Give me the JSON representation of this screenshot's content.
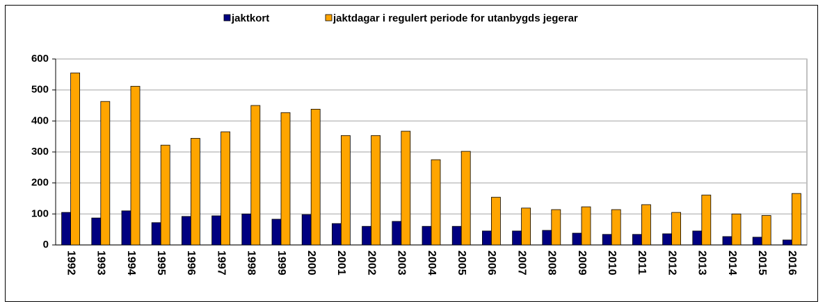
{
  "chart_data": {
    "type": "bar",
    "categories": [
      "1992",
      "1993",
      "1994",
      "1995",
      "1996",
      "1997",
      "1998",
      "1999",
      "2000",
      "2001",
      "2002",
      "2003",
      "2004",
      "2005",
      "2006",
      "2007",
      "2008",
      "2009",
      "2010",
      "2011",
      "2012",
      "2013",
      "2014",
      "2015",
      "2016"
    ],
    "series": [
      {
        "name": "jaktkort",
        "color": "#000080",
        "values": [
          105,
          87,
          110,
          72,
          92,
          94,
          100,
          83,
          98,
          69,
          60,
          76,
          60,
          60,
          45,
          45,
          47,
          38,
          34,
          34,
          36,
          45,
          27,
          25,
          16
        ]
      },
      {
        "name": "jaktdagar i regulert periode for utanbygds jegerar",
        "color": "#ffa500",
        "values": [
          555,
          463,
          512,
          322,
          344,
          365,
          450,
          427,
          438,
          353,
          353,
          367,
          275,
          302,
          154,
          119,
          114,
          123,
          114,
          130,
          105,
          161,
          100,
          95,
          166
        ]
      }
    ],
    "ylim": [
      0,
      600
    ],
    "yticks": [
      0,
      100,
      200,
      300,
      400,
      500,
      600
    ],
    "grid": true,
    "legend": "top"
  }
}
